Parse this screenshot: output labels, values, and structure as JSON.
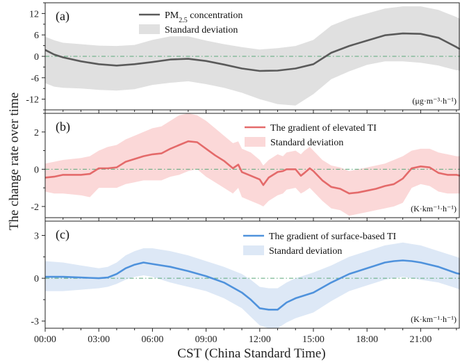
{
  "chart_data": {
    "type": "line",
    "xlabel": "CST (China Standard Time)",
    "ylabel": "The change rate over time",
    "x_ticks": [
      "00:00",
      "03:00",
      "06:00",
      "09:00",
      "12:00",
      "15:00",
      "18:00",
      "21:00"
    ],
    "xlim": [
      0,
      23.2
    ],
    "panels": [
      {
        "label": "(a)",
        "unit": "(μg·m⁻³·h⁻¹)",
        "ylim": [
          -15,
          15
        ],
        "y_ticks": [
          12,
          6,
          0,
          -6,
          -12
        ],
        "color": "#5a5a5a",
        "band_color": "#e0e0e0",
        "legend": [
          {
            "kind": "line",
            "text": "PM",
            "sub": "2.5",
            "tail": " concentration"
          },
          {
            "kind": "band",
            "text": "Standard deviation"
          }
        ],
        "series": {
          "x": [
            0,
            0.5,
            1,
            2,
            3,
            4,
            5,
            6,
            7,
            8,
            9,
            10,
            11,
            12,
            13,
            14,
            15,
            16,
            17,
            18,
            19,
            20,
            21,
            22,
            23,
            23.2
          ],
          "mean": [
            1.8,
            0.5,
            -0.3,
            -1.4,
            -2.2,
            -2.6,
            -2.2,
            -1.6,
            -0.9,
            -0.7,
            -1.3,
            -2.3,
            -3.4,
            -4.1,
            -4.0,
            -3.4,
            -2.2,
            1.0,
            2.9,
            4.4,
            5.9,
            6.4,
            6.3,
            5.2,
            2.6,
            2.0
          ],
          "upper": [
            5.5,
            4.5,
            3.8,
            3.4,
            3.0,
            2.9,
            3.2,
            4.6,
            5.6,
            5.6,
            4.4,
            3.4,
            2.6,
            1.9,
            2.3,
            2.9,
            4.6,
            8.6,
            10.6,
            12.0,
            13.4,
            14.0,
            14.0,
            13.0,
            11.0,
            10.5
          ],
          "lower": [
            -7.5,
            -8.5,
            -8.8,
            -9.0,
            -9.4,
            -9.6,
            -9.2,
            -8.0,
            -7.4,
            -7.0,
            -7.8,
            -8.8,
            -10.2,
            -12.0,
            -13.4,
            -13.8,
            -10.6,
            -6.4,
            -4.2,
            -2.4,
            -1.4,
            -1.4,
            -1.8,
            -2.6,
            -3.9,
            -4.0
          ]
        }
      },
      {
        "label": "(b)",
        "unit": "(K·km⁻¹·h⁻¹)",
        "ylim": [
          -2.6,
          3.0
        ],
        "y_ticks": [
          2,
          0,
          -2
        ],
        "color": "#e46a6a",
        "band_color": "#fbd8d8",
        "legend": [
          {
            "kind": "line",
            "text": "The gradient of elevated TI"
          },
          {
            "kind": "band",
            "text": "Standard deviation"
          }
        ],
        "series": {
          "x": [
            0,
            0.5,
            1,
            2,
            2.5,
            3,
            3.5,
            4,
            4.5,
            5,
            5.5,
            6,
            6.5,
            7,
            7.5,
            8,
            8.5,
            9,
            9.5,
            10,
            10.5,
            10.8,
            11,
            11.5,
            12,
            12.2,
            12.5,
            13,
            13.3,
            13.5,
            14,
            14.3,
            14.5,
            14.8,
            15,
            15.5,
            16,
            16.5,
            17,
            17.5,
            18,
            18.5,
            19,
            19.5,
            20,
            20.5,
            21,
            21.5,
            22,
            22.5,
            23,
            23.2
          ],
          "mean": [
            -0.45,
            -0.4,
            -0.3,
            -0.3,
            -0.25,
            0.05,
            0.05,
            0.1,
            0.4,
            0.55,
            0.7,
            0.8,
            0.85,
            1.1,
            1.3,
            1.5,
            1.45,
            1.1,
            0.75,
            0.45,
            0.05,
            0.25,
            -0.15,
            -0.35,
            -0.55,
            -0.85,
            -0.45,
            -0.15,
            -0.1,
            0.0,
            0.0,
            -0.35,
            -0.2,
            0.05,
            -0.1,
            -0.6,
            -0.95,
            -1.05,
            -1.3,
            -1.25,
            -1.15,
            -1.05,
            -0.9,
            -0.8,
            -0.5,
            0.05,
            0.15,
            0.1,
            -0.2,
            -0.3,
            -0.3,
            -0.35
          ],
          "upper": [
            0.3,
            0.4,
            0.5,
            0.6,
            0.7,
            1.0,
            1.2,
            1.3,
            1.6,
            1.8,
            2.0,
            2.2,
            2.3,
            2.6,
            2.9,
            3.0,
            2.9,
            2.6,
            2.2,
            1.8,
            1.4,
            1.5,
            1.1,
            0.9,
            0.5,
            0.2,
            0.5,
            0.8,
            0.7,
            0.9,
            1.0,
            0.8,
            1.0,
            1.2,
            1.0,
            0.5,
            0.2,
            0.1,
            -0.1,
            0.0,
            0.1,
            0.2,
            0.3,
            0.5,
            0.7,
            1.0,
            1.1,
            1.1,
            0.9,
            0.8,
            0.7,
            0.7
          ],
          "lower": [
            -1.2,
            -1.3,
            -1.3,
            -1.4,
            -1.5,
            -1.0,
            -1.0,
            -1.0,
            -0.8,
            -0.7,
            -0.6,
            -0.6,
            -0.6,
            -0.4,
            -0.3,
            -0.1,
            0.0,
            -0.4,
            -0.7,
            -1.0,
            -1.3,
            -1.0,
            -1.5,
            -1.7,
            -1.9,
            -2.0,
            -1.7,
            -1.4,
            -1.3,
            -1.1,
            -1.0,
            -1.3,
            -1.2,
            -1.0,
            -1.2,
            -1.7,
            -2.1,
            -2.2,
            -2.5,
            -2.4,
            -2.3,
            -2.2,
            -2.1,
            -2.0,
            -1.8,
            -1.0,
            -0.8,
            -0.9,
            -1.2,
            -1.3,
            -1.3,
            -1.3
          ]
        }
      },
      {
        "label": "(c)",
        "unit": "(K·km⁻¹·h⁻¹)",
        "ylim": [
          -3.5,
          4.0
        ],
        "y_ticks": [
          3,
          0,
          -3
        ],
        "color": "#4f92dc",
        "band_color": "#dde8f6",
        "legend": [
          {
            "kind": "line",
            "text": "The gradient of surface-based TI"
          },
          {
            "kind": "band",
            "text": "Standard deviation"
          }
        ],
        "series": {
          "x": [
            0,
            1,
            2,
            3,
            3.5,
            4,
            4.5,
            5,
            5.5,
            6,
            7,
            8,
            9,
            10,
            11,
            11.5,
            12,
            12.5,
            13,
            13.5,
            14,
            15,
            16,
            17,
            18,
            19,
            19.5,
            20,
            20.5,
            21,
            22,
            23,
            23.2
          ],
          "mean": [
            0.1,
            0.1,
            0.05,
            0.0,
            0.05,
            0.3,
            0.7,
            0.95,
            1.1,
            1.0,
            0.8,
            0.5,
            0.15,
            -0.3,
            -1.0,
            -1.5,
            -2.1,
            -2.2,
            -2.2,
            -1.7,
            -1.4,
            -1.0,
            -0.3,
            0.3,
            0.7,
            1.1,
            1.2,
            1.25,
            1.2,
            1.1,
            0.8,
            0.35,
            0.3
          ],
          "upper": [
            1.2,
            1.1,
            0.9,
            0.7,
            0.8,
            1.1,
            1.6,
            1.9,
            2.1,
            2.1,
            1.9,
            1.6,
            1.2,
            0.8,
            0.3,
            -0.1,
            -0.6,
            -0.7,
            -0.7,
            -0.3,
            0.0,
            0.4,
            0.9,
            1.5,
            1.9,
            2.3,
            2.4,
            2.5,
            2.4,
            2.3,
            1.9,
            1.5,
            1.4
          ],
          "lower": [
            -0.9,
            -0.9,
            -0.8,
            -0.7,
            -0.6,
            -0.4,
            -0.1,
            0.1,
            0.2,
            0.1,
            -0.3,
            -0.6,
            -0.9,
            -1.4,
            -2.1,
            -2.7,
            -3.3,
            -3.5,
            -3.5,
            -3.1,
            -2.8,
            -2.4,
            -1.6,
            -0.9,
            -0.5,
            -0.1,
            0.0,
            0.1,
            0.0,
            -0.1,
            -0.3,
            -0.7,
            -0.8
          ]
        }
      }
    ]
  }
}
